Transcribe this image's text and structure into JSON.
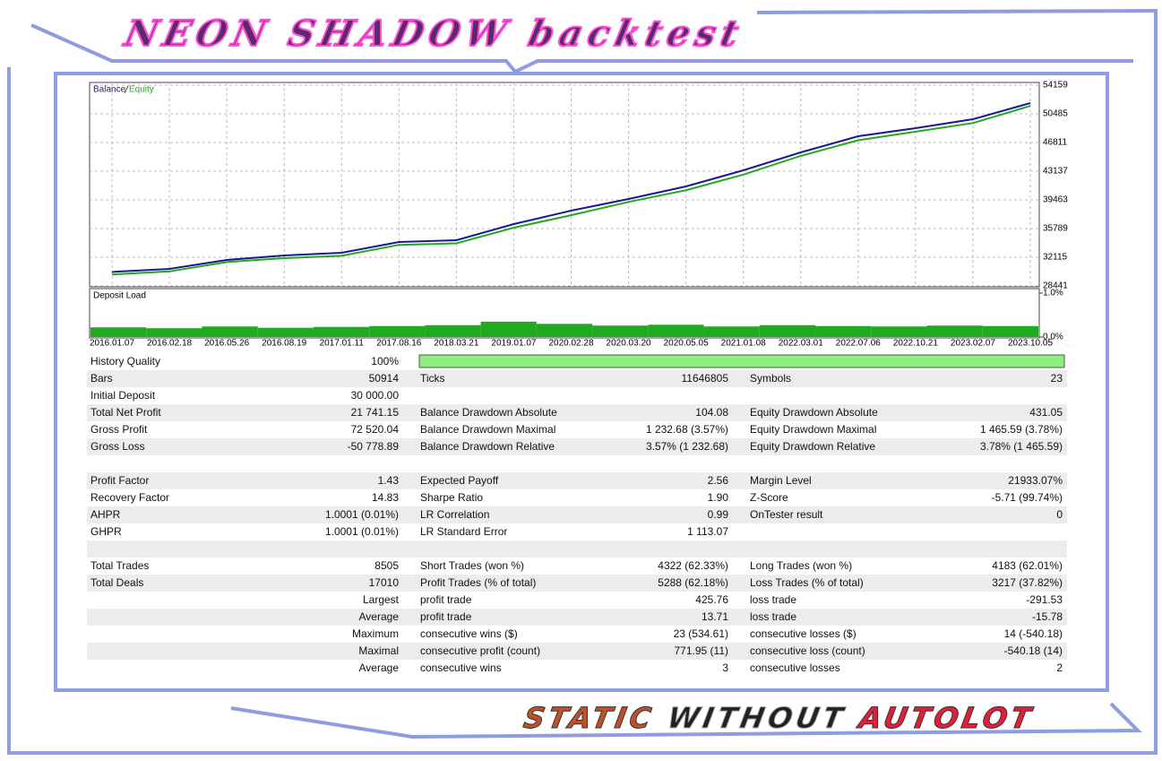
{
  "header": {
    "title": "NEON SHADOW backtest"
  },
  "chart_data": [
    {
      "type": "line",
      "categories": [
        "2016.01.07",
        "2016.02.18",
        "2016.05.26",
        "2016.08.19",
        "2017.01.11",
        "2017.08.16",
        "2018.03.21",
        "2019.01.07",
        "2020.02.28",
        "2020.03.20",
        "2020.05.05",
        "2021.01.08",
        "2022.03.01",
        "2022.07.06",
        "2022.10.21",
        "2023.02.07",
        "2023.10.05"
      ],
      "series": [
        {
          "name": "Balance",
          "color": "#1a1a8c",
          "values": [
            30236,
            30622,
            31770,
            32345,
            32689,
            34067,
            34300,
            36363,
            38085,
            39577,
            41184,
            43252,
            45548,
            47615,
            48648,
            49796,
            51863
          ]
        },
        {
          "name": "Equity",
          "color": "#1faa1f",
          "values": [
            29900,
            30300,
            31500,
            32000,
            32300,
            33700,
            33900,
            35900,
            37500,
            39200,
            40700,
            42700,
            45100,
            47100,
            48200,
            49300,
            51500
          ]
        }
      ],
      "ylim": [
        28441,
        54159
      ],
      "yticks": [
        28441,
        32115,
        35789,
        39463,
        43137,
        46811,
        50485,
        54159
      ],
      "grid": true
    },
    {
      "type": "bar",
      "title": "Deposit Load",
      "color": "#1faa1f",
      "values": [
        0.22,
        0.2,
        0.24,
        0.21,
        0.23,
        0.25,
        0.27,
        0.35,
        0.3,
        0.26,
        0.28,
        0.24,
        0.27,
        0.25,
        0.24,
        0.26,
        0.25
      ],
      "ylim": [
        0,
        1
      ],
      "yticks": [
        {
          "value": 0,
          "label": "0.0%"
        },
        {
          "value": 1,
          "label": "1.0%"
        }
      ]
    }
  ],
  "table": {
    "rows": [
      [
        "History Quality",
        "100%"
      ],
      [
        "Bars",
        "50914",
        "Ticks",
        "11646805",
        "Symbols",
        "23"
      ],
      [
        "Initial Deposit",
        "30 000.00"
      ],
      [
        "Total Net Profit",
        "21 741.15",
        "Balance Drawdown Absolute",
        "104.08",
        "Equity Drawdown Absolute",
        "431.05"
      ],
      [
        "Gross Profit",
        "72 520.04",
        "Balance Drawdown Maximal",
        "1 232.68 (3.57%)",
        "Equity Drawdown Maximal",
        "1 465.59 (3.78%)"
      ],
      [
        "Gross Loss",
        "-50 778.89",
        "Balance Drawdown Relative",
        "3.57% (1 232.68)",
        "Equity Drawdown Relative",
        "3.78% (1 465.59)"
      ],
      [],
      [
        "Profit Factor",
        "1.43",
        "Expected Payoff",
        "2.56",
        "Margin Level",
        "21933.07%"
      ],
      [
        "Recovery Factor",
        "14.83",
        "Sharpe Ratio",
        "1.90",
        "Z-Score",
        "-5.71 (99.74%)"
      ],
      [
        "AHPR",
        "1.0001 (0.01%)",
        "LR Correlation",
        "0.99",
        "OnTester result",
        "0"
      ],
      [
        "GHPR",
        "1.0001 (0.01%)",
        "LR Standard Error",
        "1 113.07"
      ],
      [],
      [
        "Total Trades",
        "8505",
        "Short Trades (won %)",
        "4322 (62.33%)",
        "Long Trades (won %)",
        "4183 (62.01%)"
      ],
      [
        "Total Deals",
        "17010",
        "Profit Trades (% of total)",
        "5288 (62.18%)",
        "Loss Trades (% of total)",
        "3217 (37.82%)"
      ],
      [
        null,
        "Largest",
        "profit trade",
        "425.76",
        "loss trade",
        "-291.53"
      ],
      [
        null,
        "Average",
        "profit trade",
        "13.71",
        "loss trade",
        "-15.78"
      ],
      [
        null,
        "Maximum",
        "consecutive wins ($)",
        "23 (534.61)",
        "consecutive losses ($)",
        "14 (-540.18)"
      ],
      [
        null,
        "Maximal",
        "consecutive profit (count)",
        "771.95 (11)",
        "consecutive loss (count)",
        "-540.18 (14)"
      ],
      [
        null,
        "Average",
        "consecutive wins",
        "3",
        "consecutive losses",
        "2"
      ]
    ]
  },
  "footer": {
    "words": [
      "STATIC",
      "WITHOUT",
      "AUTOLOT"
    ]
  }
}
